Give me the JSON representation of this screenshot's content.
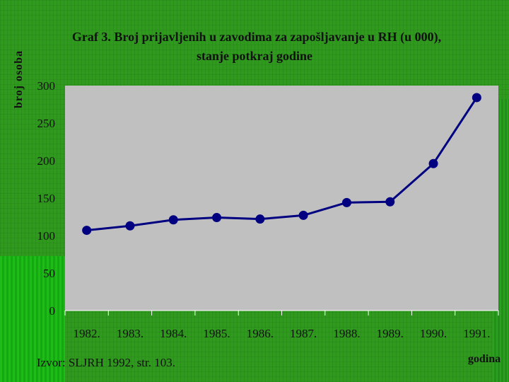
{
  "chart_data": {
    "type": "line",
    "title_line1": "Graf 3. Broj prijavljenih u zavodima za zapošljavanje u RH (u 000),",
    "title_line2": "stanje potkraj godine",
    "ylabel": "broj osoba",
    "xlabel": "godina",
    "categories": [
      "1982.",
      "1983.",
      "1984.",
      "1985.",
      "1986.",
      "1987.",
      "1988.",
      "1989.",
      "1990.",
      "1991."
    ],
    "values": [
      107,
      113,
      121,
      124,
      122,
      127,
      144,
      145,
      196,
      284
    ],
    "ylim": [
      0,
      300
    ],
    "yticks": [
      0,
      50,
      100,
      150,
      200,
      250,
      300
    ],
    "grid": false,
    "colors": {
      "line": "#000080",
      "marker": "#000080",
      "plot_bg": "#c0c0c0"
    }
  },
  "source": "Izvor: SLJRH 1992, str. 103."
}
